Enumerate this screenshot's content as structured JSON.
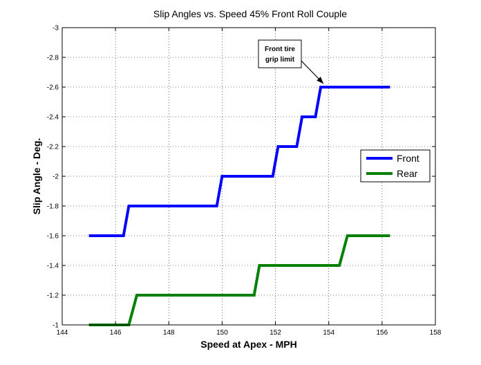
{
  "chart_data": {
    "type": "line",
    "title": "Slip Angles vs. Speed 45% Front Roll Couple",
    "xlabel": "Speed at Apex - MPH",
    "ylabel": "Slip Angle - Deg.",
    "xlim": [
      144,
      158
    ],
    "ylim": [
      -1,
      -3
    ],
    "y_reversed": true,
    "xticks": [
      144,
      146,
      148,
      150,
      152,
      154,
      156,
      158
    ],
    "yticks": [
      -1,
      -1.2,
      -1.4,
      -1.6,
      -1.8,
      -2,
      -2.2,
      -2.4,
      -2.6,
      -2.8,
      -3
    ],
    "grid": true,
    "legend_position": "right",
    "series": [
      {
        "name": "Front",
        "color": "#0000ff",
        "x": [
          145.0,
          146.3,
          146.5,
          149.8,
          150.0,
          151.9,
          152.1,
          152.8,
          153.0,
          153.5,
          153.7,
          156.3
        ],
        "y": [
          -1.6,
          -1.6,
          -1.8,
          -1.8,
          -2.0,
          -2.0,
          -2.2,
          -2.2,
          -2.4,
          -2.4,
          -2.6,
          -2.6
        ]
      },
      {
        "name": "Rear",
        "color": "#008000",
        "x": [
          145.0,
          146.5,
          146.8,
          151.2,
          151.4,
          154.4,
          154.7,
          156.3
        ],
        "y": [
          -1.0,
          -1.0,
          -1.2,
          -1.2,
          -1.4,
          -1.4,
          -1.6,
          -1.6
        ]
      }
    ],
    "annotations": [
      {
        "text_lines": [
          "Front tire",
          "grip limit"
        ],
        "target": [
          153.8,
          -2.6
        ]
      }
    ]
  }
}
